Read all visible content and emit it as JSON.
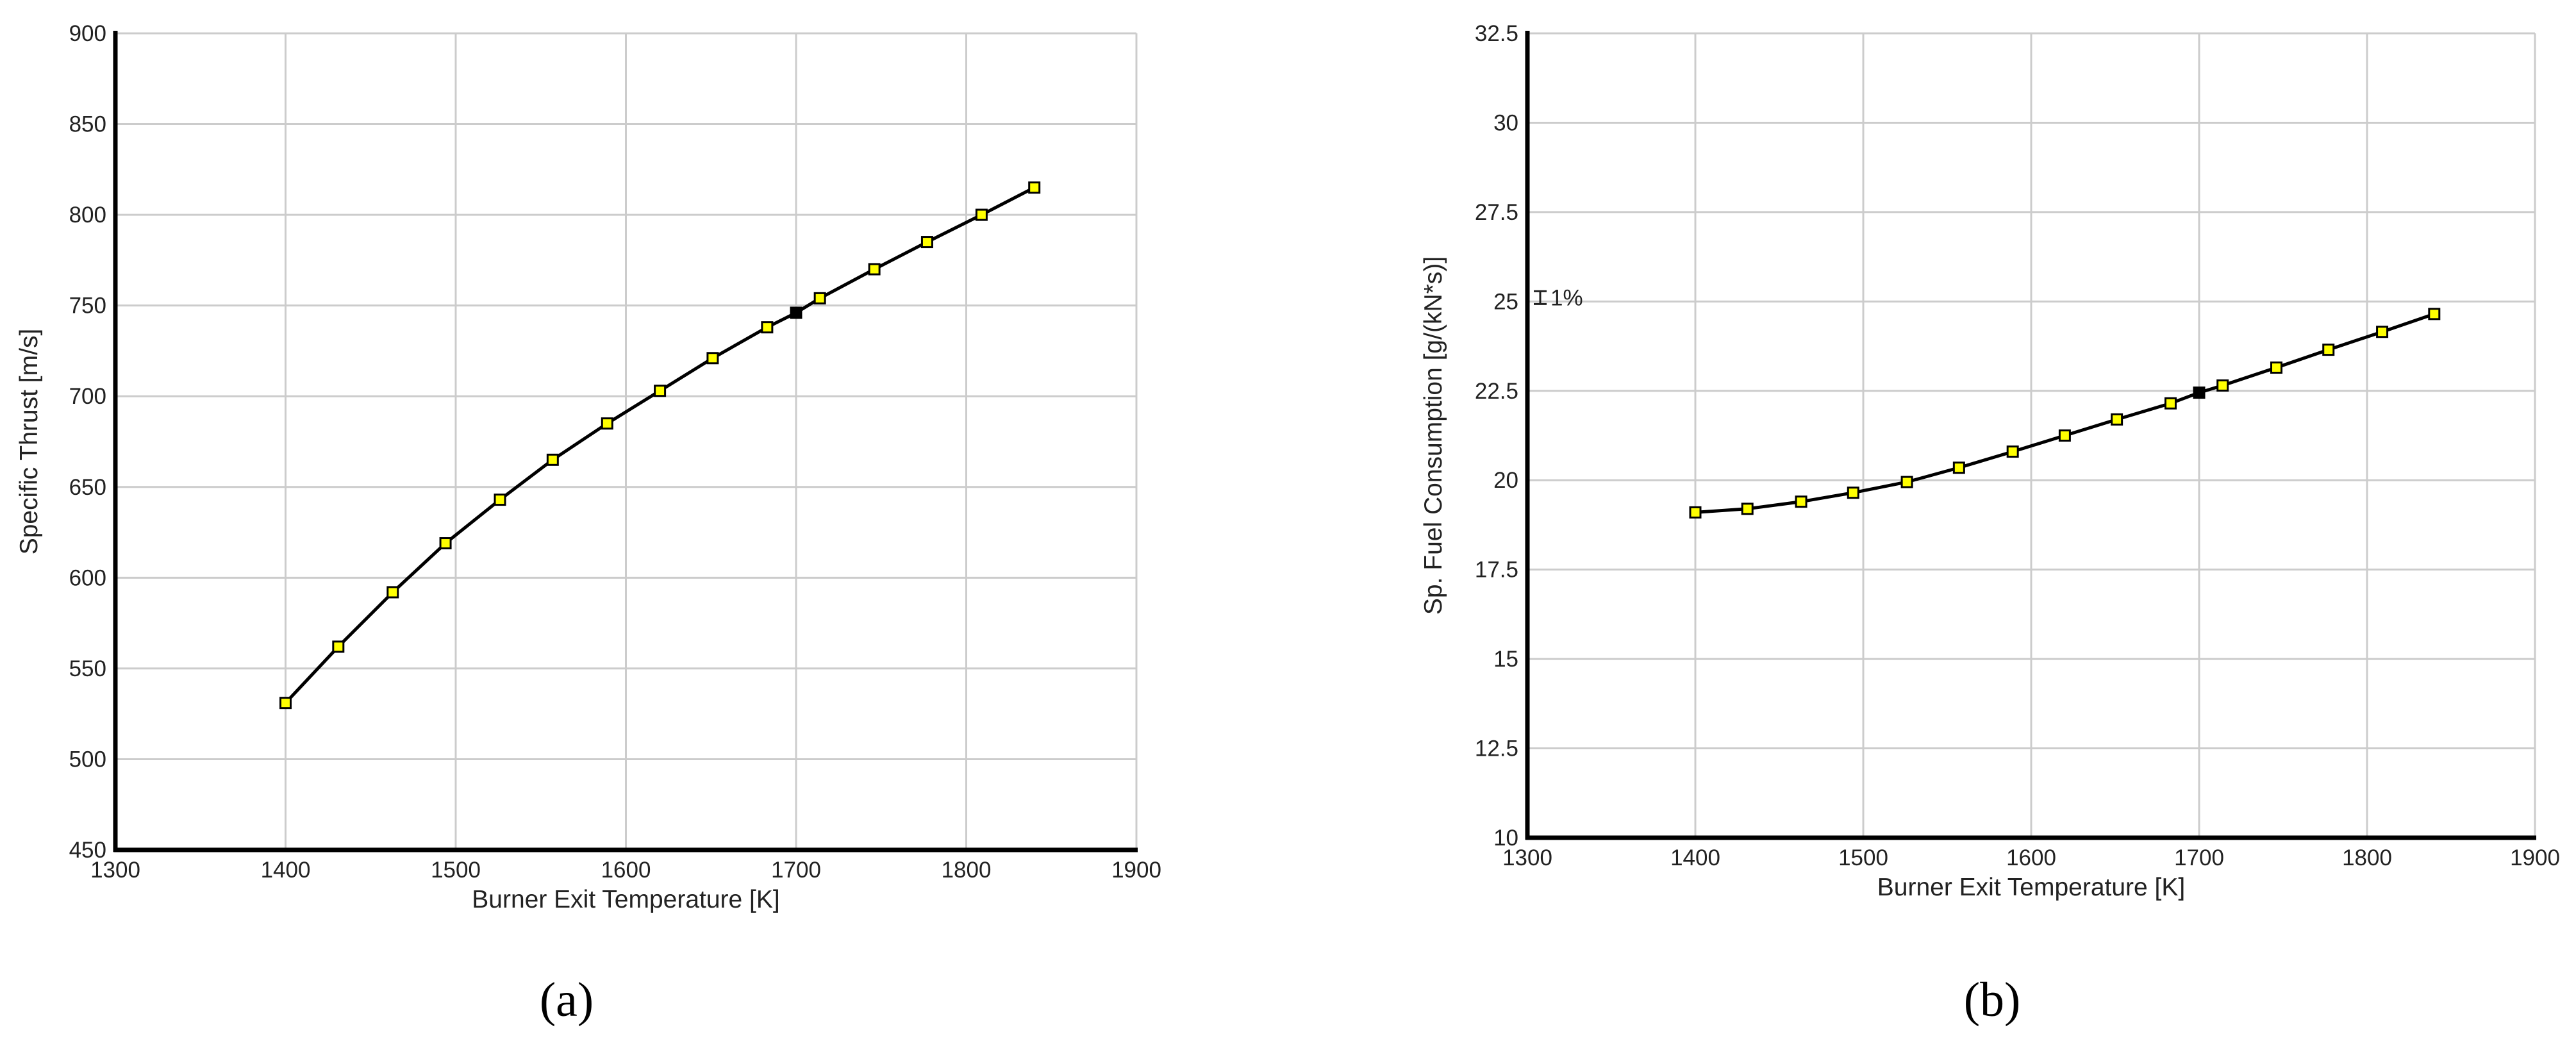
{
  "chart_data": [
    {
      "id": "a",
      "type": "line",
      "caption": "(a)",
      "xlabel": "Burner Exit Temperature [K]",
      "ylabel": "Specific Thrust [m/s]",
      "xlim": [
        1300,
        1900
      ],
      "ylim": [
        450,
        900
      ],
      "xticks": [
        1300,
        1400,
        1500,
        1600,
        1700,
        1800,
        1900
      ],
      "yticks": [
        450,
        500,
        550,
        600,
        650,
        700,
        750,
        800,
        850,
        900
      ],
      "grid": true,
      "marker_color": "#ffff00",
      "design_point_color": "#000000",
      "x": [
        1400,
        1431,
        1463,
        1494,
        1526,
        1557,
        1589,
        1620,
        1651,
        1683,
        1700,
        1714,
        1746,
        1777,
        1809,
        1840
      ],
      "y": [
        531,
        562,
        592,
        619,
        643,
        665,
        685,
        703,
        721,
        738,
        746,
        754,
        770,
        785,
        800,
        815
      ],
      "design_point_index": 10
    },
    {
      "id": "b",
      "type": "line",
      "caption": "(b)",
      "xlabel": "Burner Exit Temperature [K]",
      "ylabel": "Sp. Fuel Consumption [g/(kN*s)]",
      "xlim": [
        1300,
        1900
      ],
      "ylim": [
        10,
        32.5
      ],
      "xticks": [
        1300,
        1400,
        1500,
        1600,
        1700,
        1800,
        1900
      ],
      "yticks": [
        10,
        12.5,
        15,
        17.5,
        20,
        22.5,
        25,
        27.5,
        30,
        32.5
      ],
      "ytick_labels": [
        "10",
        "12.5",
        "15",
        "17.5",
        "20",
        "22.5",
        "25",
        "27.5",
        "30",
        "32.5"
      ],
      "grid": true,
      "marker_color": "#ffff00",
      "design_point_color": "#000000",
      "annotation": "1%",
      "x": [
        1400,
        1431,
        1463,
        1494,
        1526,
        1557,
        1589,
        1620,
        1651,
        1683,
        1700,
        1714,
        1746,
        1777,
        1809,
        1840
      ],
      "y": [
        19.1,
        19.2,
        19.4,
        19.65,
        19.95,
        20.35,
        20.8,
        21.25,
        21.7,
        22.15,
        22.45,
        22.65,
        23.15,
        23.65,
        24.15,
        24.65
      ],
      "design_point_index": 10
    }
  ]
}
